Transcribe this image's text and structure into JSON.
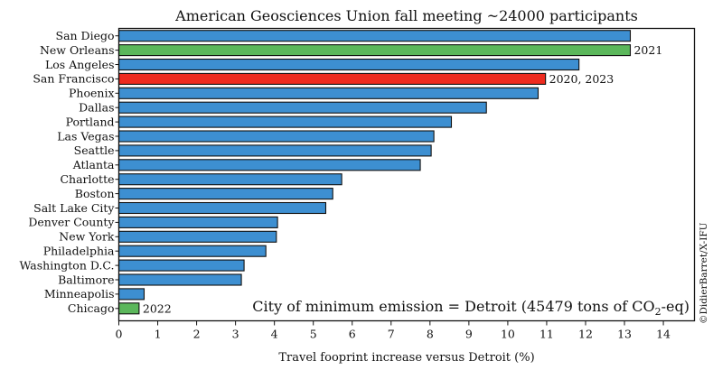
{
  "chart_data": {
    "type": "bar",
    "orientation": "horizontal",
    "title": "American Geosciences Union fall meeting ~24000 participants",
    "xlabel": "Travel fooprint increase versus Detroit (%)",
    "ylabel": "",
    "xlim": [
      0,
      14.8
    ],
    "xticks": [
      0,
      1,
      2,
      3,
      4,
      5,
      6,
      7,
      8,
      9,
      10,
      11,
      12,
      13,
      14
    ],
    "grid": false,
    "categories": [
      "San Diego",
      "New Orleans",
      "Los Angeles",
      "San Francisco",
      "Phoenix",
      "Dallas",
      "Portland",
      "Las Vegas",
      "Seattle",
      "Atlanta",
      "Charlotte",
      "Boston",
      "Salt Lake City",
      "Denver County",
      "New York",
      "Philadelphia",
      "Washington D.C.",
      "Baltimore",
      "Minneapolis",
      "Chicago"
    ],
    "values": [
      13.15,
      13.15,
      11.83,
      10.97,
      10.78,
      9.45,
      8.55,
      8.1,
      8.03,
      7.75,
      5.73,
      5.5,
      5.32,
      4.08,
      4.05,
      3.78,
      3.22,
      3.15,
      0.65,
      0.52
    ],
    "bar_colors": [
      "#3d8fd1",
      "#5bb75b",
      "#3d8fd1",
      "#ee2b1f",
      "#3d8fd1",
      "#3d8fd1",
      "#3d8fd1",
      "#3d8fd1",
      "#3d8fd1",
      "#3d8fd1",
      "#3d8fd1",
      "#3d8fd1",
      "#3d8fd1",
      "#3d8fd1",
      "#3d8fd1",
      "#3d8fd1",
      "#3d8fd1",
      "#3d8fd1",
      "#3d8fd1",
      "#5bb75b"
    ],
    "bar_annotations": [
      {
        "category": "New Orleans",
        "text": "2021"
      },
      {
        "category": "San Francisco",
        "text": "2020, 2023"
      },
      {
        "category": "Chicago",
        "text": "2022"
      }
    ],
    "note": {
      "prefix": "City of minimum emission = Detroit (45479 tons of CO",
      "subscript": "2",
      "suffix": "-eq)"
    },
    "credit": "©DidierBarret/X-IFU"
  }
}
